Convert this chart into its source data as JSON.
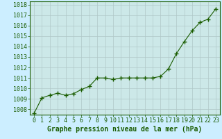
{
  "x": [
    0,
    1,
    2,
    3,
    4,
    5,
    6,
    7,
    8,
    9,
    10,
    11,
    12,
    13,
    14,
    15,
    16,
    17,
    18,
    19,
    20,
    21,
    22,
    23
  ],
  "y": [
    1007.6,
    1009.1,
    1009.35,
    1009.55,
    1009.35,
    1009.5,
    1009.9,
    1010.2,
    1011.0,
    1011.0,
    1010.85,
    1011.0,
    1011.0,
    1011.0,
    1011.0,
    1011.0,
    1011.15,
    1011.85,
    1013.3,
    1014.45,
    1015.5,
    1016.3,
    1016.6,
    1017.6
  ],
  "background_color": "#cceeff",
  "plot_bg_color": "#cce8e8",
  "line_color": "#1a5c00",
  "marker": "+",
  "marker_size": 4,
  "marker_linewidth": 1.0,
  "line_width": 0.8,
  "grid_color": "#b0c8c8",
  "xlabel": "Graphe pression niveau de la mer (hPa)",
  "xlabel_fontsize": 7,
  "xlabel_color": "#1a5c00",
  "tick_fontsize": 6,
  "ylim": [
    1007.5,
    1018.3
  ],
  "yticks": [
    1008,
    1009,
    1010,
    1011,
    1012,
    1013,
    1014,
    1015,
    1016,
    1017,
    1018
  ],
  "xticks": [
    0,
    1,
    2,
    3,
    4,
    5,
    6,
    7,
    8,
    9,
    10,
    11,
    12,
    13,
    14,
    15,
    16,
    17,
    18,
    19,
    20,
    21,
    22,
    23
  ],
  "xlim": [
    -0.5,
    23.5
  ]
}
